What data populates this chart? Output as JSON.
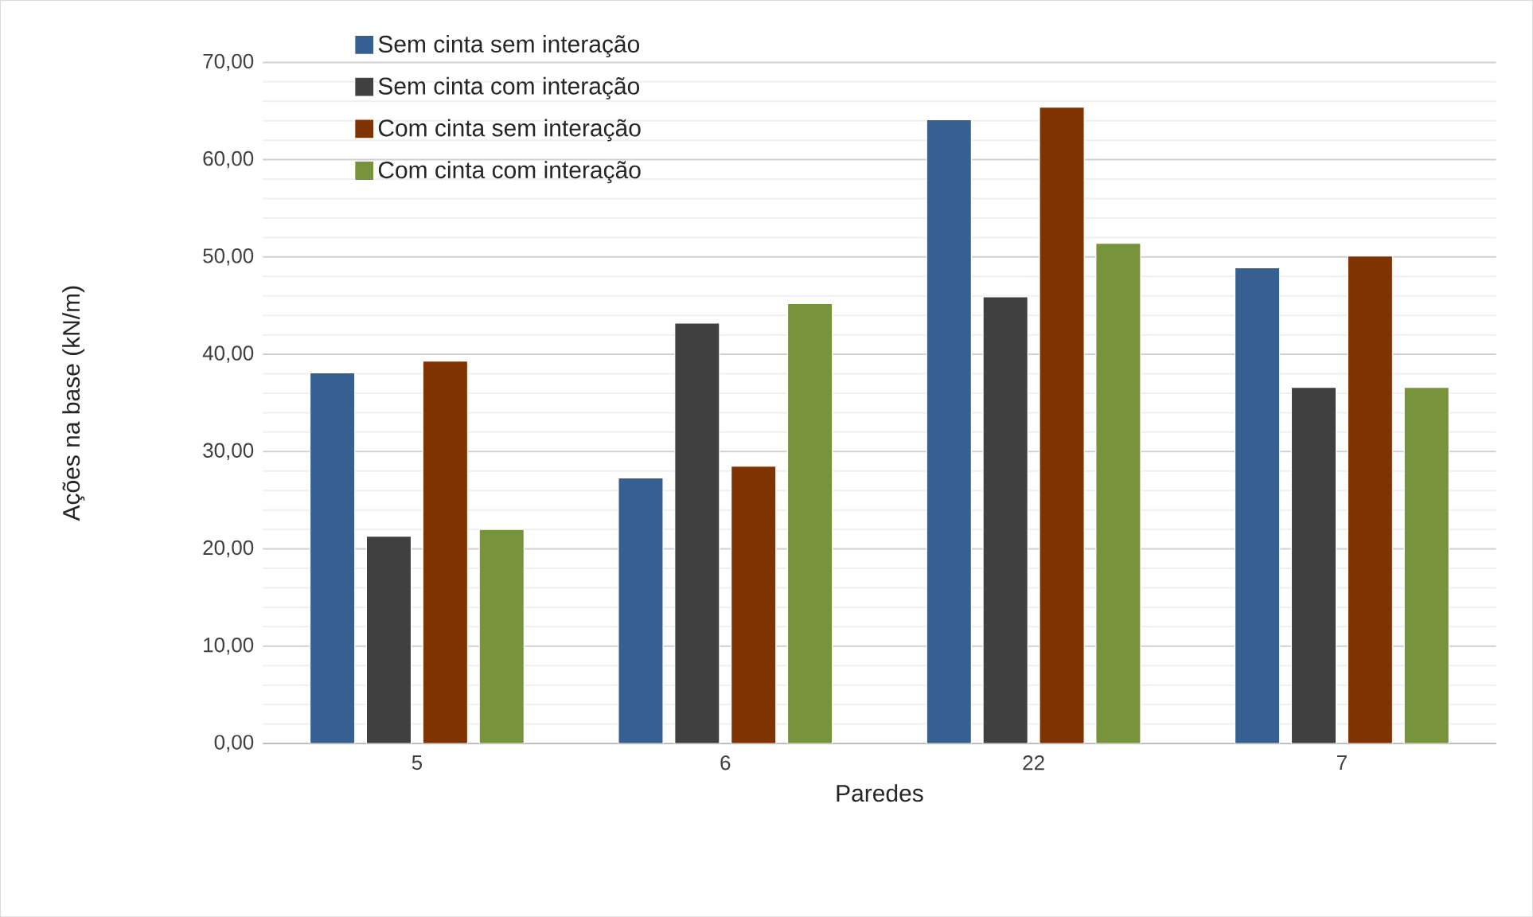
{
  "chart_data": {
    "type": "bar",
    "xlabel": "Paredes",
    "ylabel": "Ações na base (kN/m)",
    "categories": [
      "5",
      "6",
      "22",
      "7"
    ],
    "series": [
      {
        "name": "Sem cinta sem interação",
        "color": "#376092",
        "values": [
          38.1,
          27.3,
          64.1,
          48.9
        ]
      },
      {
        "name": "Sem cinta com interação",
        "color": "#404040",
        "values": [
          21.3,
          43.2,
          45.9,
          36.6
        ]
      },
      {
        "name": "Com cinta sem interação",
        "color": "#7f3300",
        "values": [
          39.3,
          28.5,
          65.4,
          50.1
        ]
      },
      {
        "name": "Com cinta com interação",
        "color": "#77933c",
        "values": [
          22.0,
          45.2,
          51.4,
          36.6
        ]
      }
    ],
    "ylim": [
      0,
      70
    ],
    "yticks": [
      {
        "value": 0,
        "label": "0,00"
      },
      {
        "value": 10,
        "label": "10,00"
      },
      {
        "value": 20,
        "label": "20,00"
      },
      {
        "value": 30,
        "label": "30,00"
      },
      {
        "value": 40,
        "label": "40,00"
      },
      {
        "value": 50,
        "label": "50,00"
      },
      {
        "value": 60,
        "label": "60,00"
      },
      {
        "value": 70,
        "label": "70,00"
      }
    ],
    "grid": "y",
    "legend": "top left"
  }
}
